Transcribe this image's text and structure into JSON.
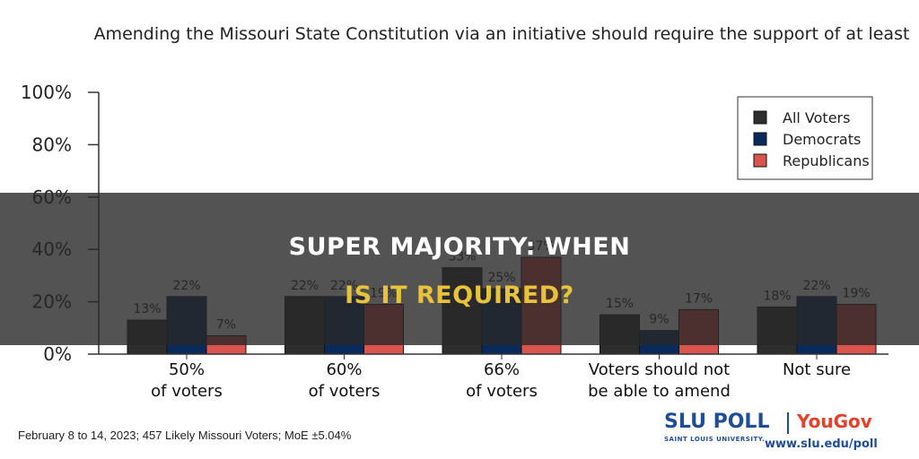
{
  "chart_data": {
    "type": "bar",
    "title": "Amending the Missouri State Constitution via an initiative should require the support of at least",
    "categories": [
      [
        "50%",
        "of voters"
      ],
      [
        "60%",
        "of voters"
      ],
      [
        "66%",
        "of voters"
      ],
      [
        "Voters should not",
        "be able to amend"
      ],
      [
        "Not sure"
      ]
    ],
    "series": [
      {
        "name": "All Voters",
        "color": "#2d2d2d",
        "values": [
          13,
          22,
          33,
          15,
          18
        ],
        "labels": [
          "13%",
          "22%",
          "33%",
          "15%",
          "18%"
        ]
      },
      {
        "name": "Democrats",
        "color": "#0b2a5c",
        "values": [
          22,
          22,
          25,
          9,
          22
        ],
        "labels": [
          "22%",
          "22%",
          "25%",
          "9%",
          "22%"
        ]
      },
      {
        "name": "Republicans",
        "color": "#d9534f",
        "values": [
          7,
          19,
          37,
          17,
          19
        ],
        "labels": [
          "7%",
          "19%",
          "37%",
          "17%",
          "19%"
        ]
      }
    ],
    "yticks": [
      "0%",
      "20%",
      "40%",
      "60%",
      "80%",
      "100%"
    ],
    "ylim": [
      0,
      100
    ],
    "xlabel": "",
    "ylabel": "",
    "legend_position": "top-right",
    "grid": false
  },
  "footnote": "February 8 to 14, 2023; 457 Likely Missouri Voters; MoE ±5.04%",
  "banner": {
    "line1": "SUPER MAJORITY: WHEN",
    "line2": "IS IT REQUIRED?"
  },
  "logo": {
    "slu_poll": "SLU POLL",
    "yougov": "YouGov",
    "university": "SAINT LOUIS UNIVERSITY.",
    "url": "www.slu.edu/poll"
  }
}
